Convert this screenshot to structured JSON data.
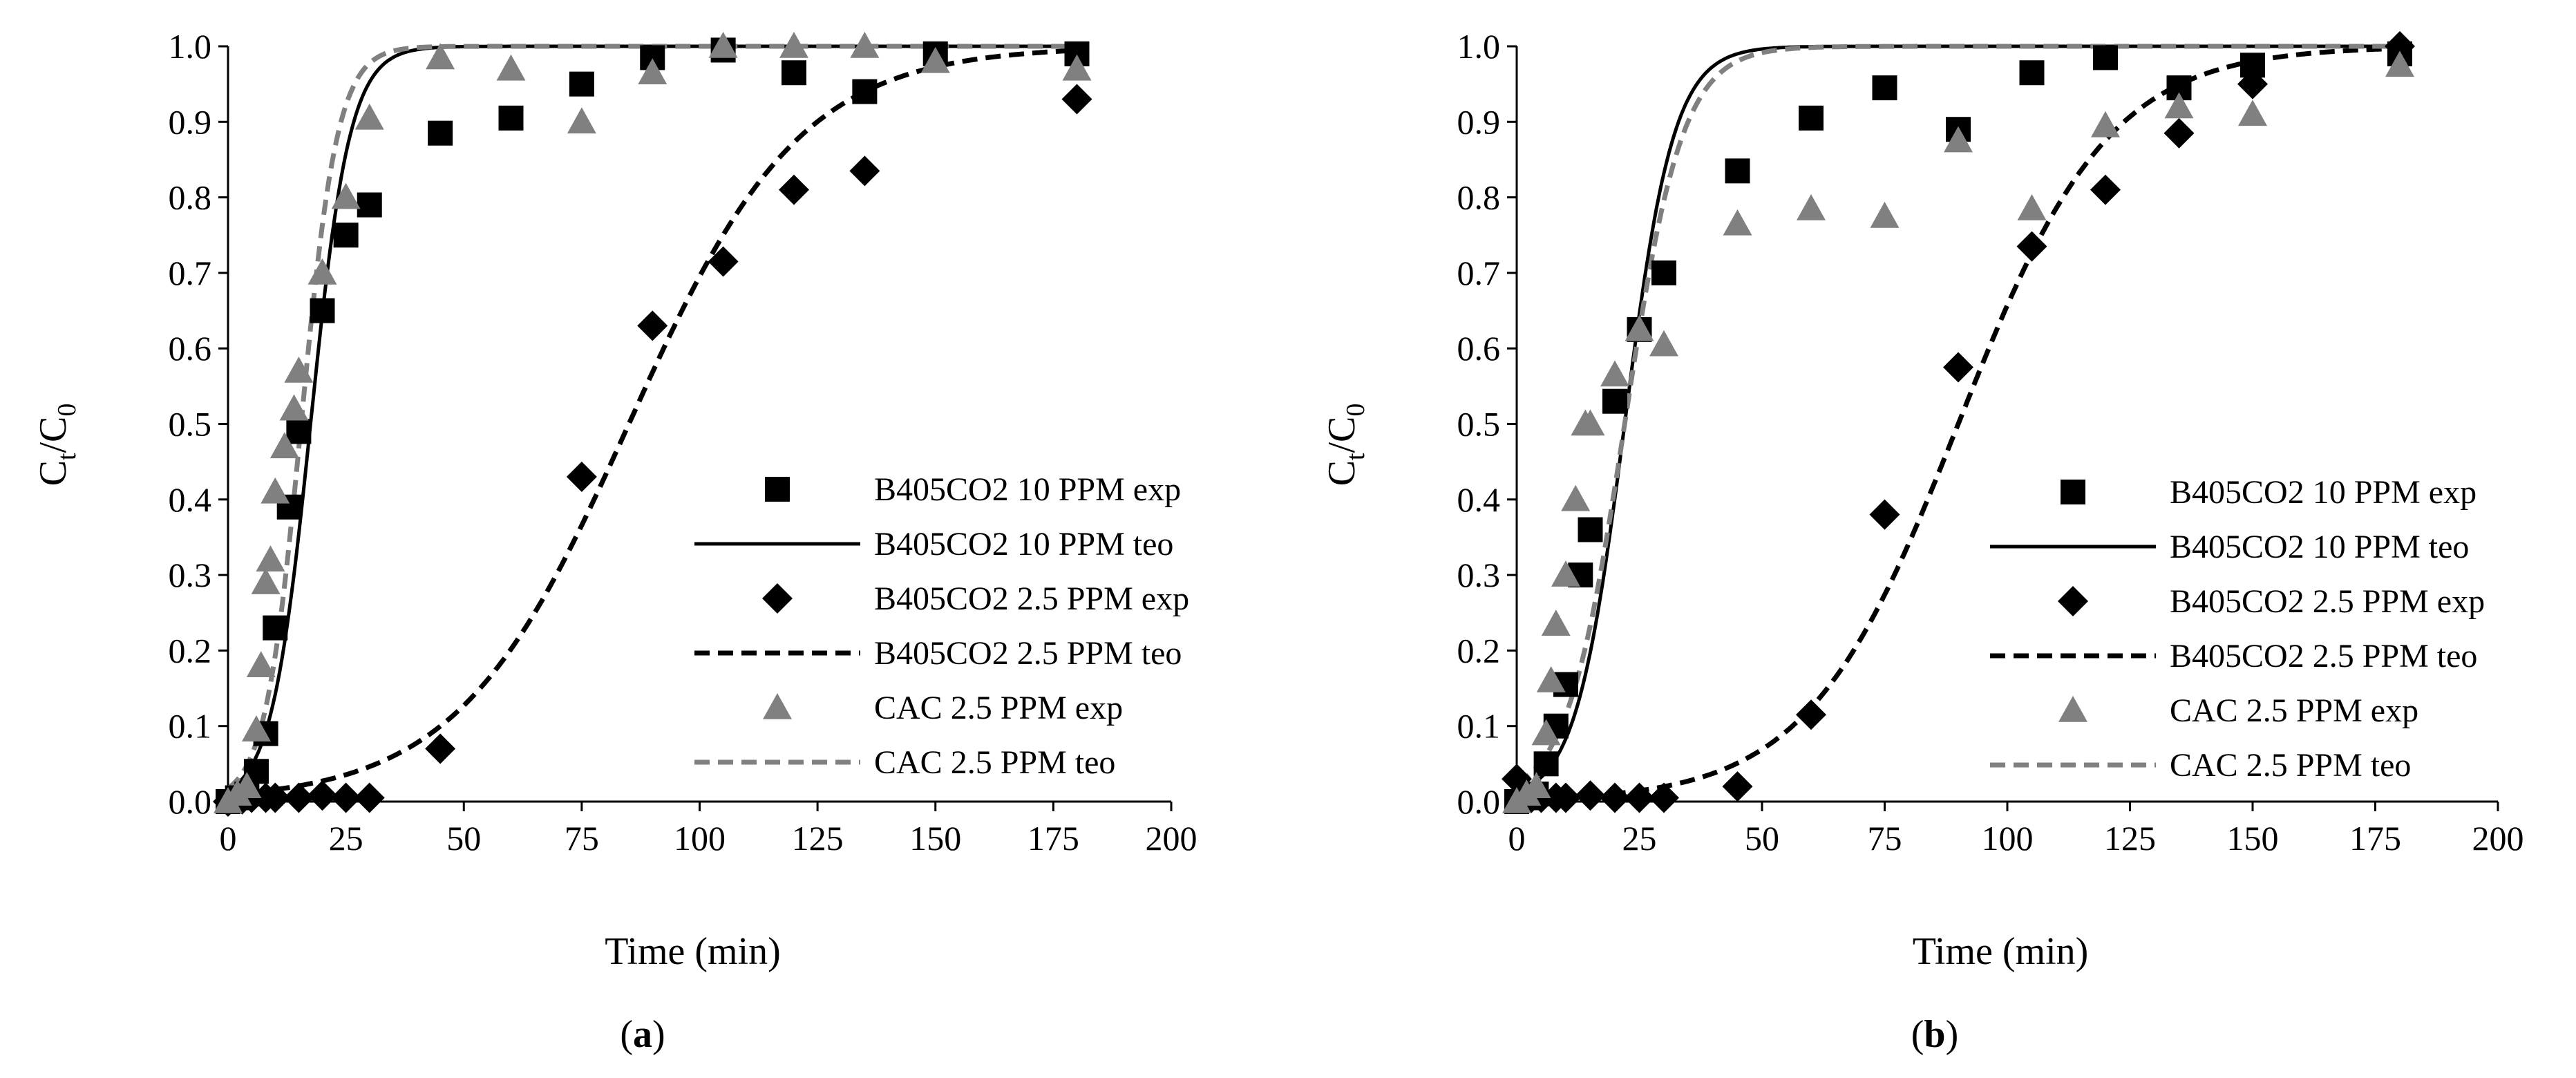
{
  "colors": {
    "black": "#000000",
    "gray": "#808080",
    "axis": "#000000"
  },
  "chart_data": [
    {
      "type": "scatter",
      "panel_label": [
        "(",
        "a",
        ")"
      ],
      "xlabel": "Time (min)",
      "ylabel": {
        "main": "C",
        "sub1": "t",
        "slash": "/C",
        "sub2": "0"
      },
      "xlim": [
        0,
        200
      ],
      "ylim": [
        0,
        1
      ],
      "xticks": [
        "0",
        "25",
        "50",
        "75",
        "100",
        "125",
        "150",
        "175",
        "200"
      ],
      "yticks": [
        "0.0",
        "0.1",
        "0.2",
        "0.3",
        "0.4",
        "0.5",
        "0.6",
        "0.7",
        "0.8",
        "0.9",
        "1.0"
      ],
      "series": [
        {
          "name": "B405CO2 10 PPM exp",
          "kind": "scatter",
          "marker": "square",
          "color": "#000000",
          "x": [
            0,
            2,
            4,
            6,
            8,
            10,
            13,
            15,
            20,
            25,
            30,
            45,
            60,
            75,
            90,
            105,
            120,
            135,
            150,
            180
          ],
          "y": [
            0.0,
            0.005,
            0.01,
            0.04,
            0.09,
            0.23,
            0.39,
            0.49,
            0.65,
            0.75,
            0.79,
            0.885,
            0.905,
            0.95,
            0.985,
            0.995,
            0.965,
            0.94,
            0.99,
            0.99
          ]
        },
        {
          "name": "B405CO2 10 PPM teo",
          "kind": "line",
          "style": "solid",
          "color": "#000000",
          "logistic": {
            "k": 0.24,
            "t50": 17.5
          }
        },
        {
          "name": "B405CO2 2.5 PPM exp",
          "kind": "scatter",
          "marker": "diamond",
          "color": "#000000",
          "x": [
            0,
            3,
            5,
            8,
            10,
            15,
            20,
            25,
            30,
            45,
            75,
            90,
            105,
            120,
            135,
            180
          ],
          "y": [
            0.0,
            0.003,
            0.005,
            0.005,
            0.005,
            0.005,
            0.008,
            0.005,
            0.005,
            0.07,
            0.43,
            0.63,
            0.715,
            0.81,
            0.835,
            0.93
          ]
        },
        {
          "name": "B405CO2 2.5 PPM teo",
          "kind": "line",
          "style": "dashed",
          "color": "#000000",
          "logistic": {
            "k": 0.055,
            "t50": 85
          }
        },
        {
          "name": "CAC 2.5 PPM exp",
          "kind": "scatter",
          "marker": "triangle",
          "color": "#808080",
          "x": [
            0,
            2,
            4,
            6,
            7,
            8,
            9,
            10,
            12,
            14,
            15,
            20,
            25,
            30,
            45,
            60,
            75,
            90,
            105,
            120,
            135,
            150,
            180
          ],
          "y": [
            0.0,
            0.01,
            0.02,
            0.095,
            0.18,
            0.29,
            0.32,
            0.41,
            0.47,
            0.52,
            0.57,
            0.7,
            0.8,
            0.905,
            0.985,
            0.97,
            0.9,
            0.965,
            1.0,
            1.0,
            1.0,
            0.98,
            0.97
          ]
        },
        {
          "name": "CAC 2.5 PPM teo",
          "kind": "line",
          "style": "dashed",
          "color": "#808080",
          "logistic": {
            "k": 0.26,
            "t50": 15.5
          }
        }
      ]
    },
    {
      "type": "scatter",
      "panel_label": [
        "(",
        "b",
        ")"
      ],
      "xlabel": "Time (min)",
      "ylabel": {
        "main": "C",
        "sub1": "t",
        "slash": "/C",
        "sub2": "0"
      },
      "xlim": [
        0,
        200
      ],
      "ylim": [
        0,
        1
      ],
      "xticks": [
        "0",
        "25",
        "50",
        "75",
        "100",
        "125",
        "150",
        "175",
        "200"
      ],
      "yticks": [
        "0.0",
        "0.1",
        "0.2",
        "0.3",
        "0.4",
        "0.5",
        "0.6",
        "0.7",
        "0.8",
        "0.9",
        "1.0"
      ],
      "series": [
        {
          "name": "B405CO2 10 PPM exp",
          "kind": "scatter",
          "marker": "square",
          "color": "#000000",
          "x": [
            0,
            2,
            4,
            6,
            8,
            10,
            13,
            15,
            20,
            25,
            30,
            45,
            60,
            75,
            90,
            105,
            120,
            135,
            150,
            180
          ],
          "y": [
            0.0,
            0.005,
            0.01,
            0.05,
            0.1,
            0.155,
            0.3,
            0.36,
            0.53,
            0.625,
            0.7,
            0.835,
            0.905,
            0.945,
            0.89,
            0.965,
            0.985,
            0.945,
            0.975,
            0.99
          ]
        },
        {
          "name": "B405CO2 10 PPM teo",
          "kind": "line",
          "style": "solid",
          "color": "#000000",
          "logistic": {
            "k": 0.2,
            "t50": 22
          }
        },
        {
          "name": "B405CO2 2.5 PPM exp",
          "kind": "scatter",
          "marker": "diamond",
          "color": "#000000",
          "x": [
            0,
            3,
            5,
            8,
            10,
            15,
            20,
            25,
            30,
            45,
            60,
            75,
            90,
            105,
            120,
            135,
            150,
            180
          ],
          "y": [
            0.03,
            0.005,
            0.005,
            0.005,
            0.005,
            0.008,
            0.005,
            0.005,
            0.005,
            0.02,
            0.115,
            0.38,
            0.575,
            0.735,
            0.81,
            0.885,
            0.95,
            1.0
          ]
        },
        {
          "name": "B405CO2 2.5 PPM teo",
          "kind": "line",
          "style": "dashed",
          "color": "#000000",
          "logistic": {
            "k": 0.065,
            "t50": 90
          }
        },
        {
          "name": "CAC 2.5 PPM exp",
          "kind": "scatter",
          "marker": "triangle",
          "color": "#808080",
          "x": [
            0,
            2,
            4,
            6,
            7,
            8,
            10,
            12,
            14,
            15,
            20,
            25,
            30,
            45,
            60,
            75,
            90,
            105,
            120,
            135,
            150,
            180
          ],
          "y": [
            0.0,
            0.01,
            0.02,
            0.09,
            0.16,
            0.235,
            0.3,
            0.4,
            0.5,
            0.5,
            0.565,
            0.625,
            0.605,
            0.765,
            0.785,
            0.775,
            0.875,
            0.785,
            0.895,
            0.92,
            0.91,
            0.975
          ]
        },
        {
          "name": "CAC 2.5 PPM teo",
          "kind": "line",
          "style": "dashed",
          "color": "#808080",
          "logistic": {
            "k": 0.17,
            "t50": 22
          }
        }
      ]
    }
  ]
}
